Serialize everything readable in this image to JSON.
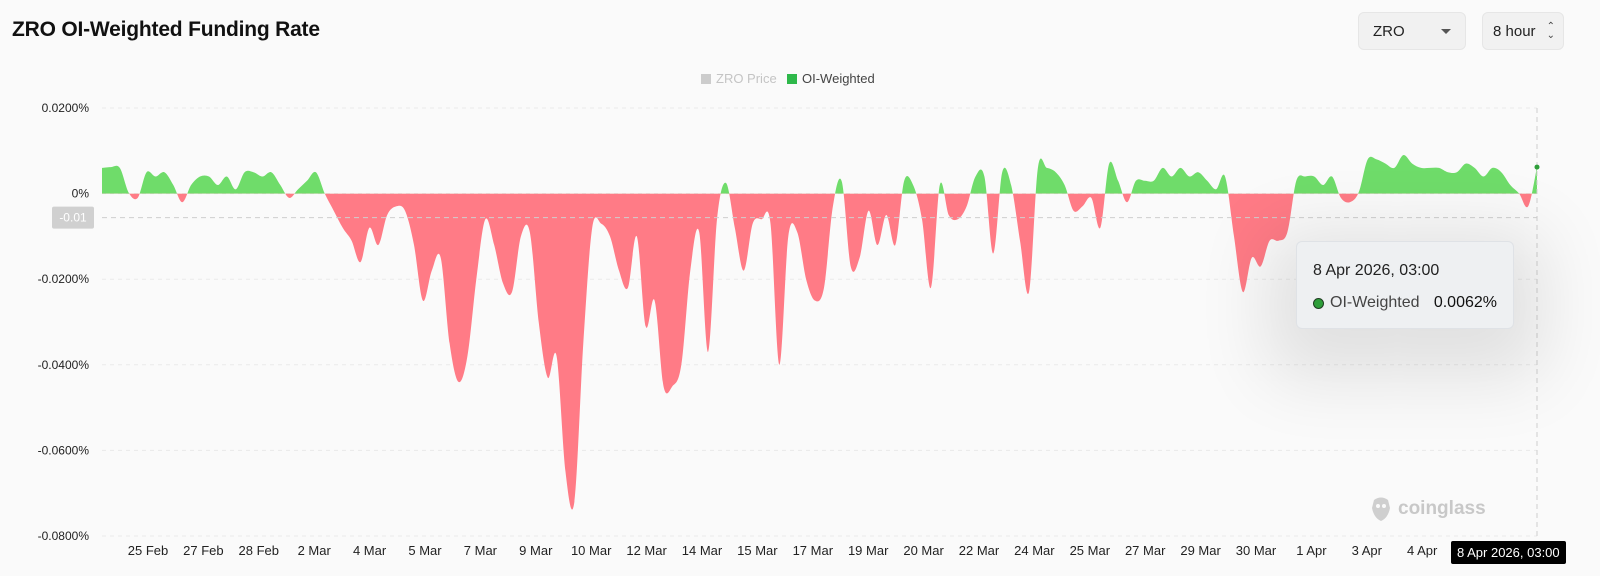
{
  "header": {
    "title": "ZRO OI-Weighted Funding Rate",
    "coin_select": "ZRO",
    "interval_select": "8 hour"
  },
  "tooltip": {
    "date": "8 Apr 2026, 03:00",
    "series": "OI-Weighted",
    "value": "0.0062%"
  },
  "crosshair": {
    "y_label": "-0.01",
    "x_label": "8 Apr 2026, 03:00"
  },
  "watermark": "coinglass",
  "colors": {
    "positive": "#6fdc6a",
    "negative": "#ff7b86",
    "legend_price": "#cccccc",
    "legend_oi": "#2eb84a"
  },
  "chart_data": {
    "type": "area",
    "title": "ZRO OI-Weighted Funding Rate",
    "legend": [
      {
        "name": "ZRO Price",
        "color": "#cccccc",
        "active": false
      },
      {
        "name": "OI-Weighted",
        "color": "#2eb84a",
        "active": true
      }
    ],
    "legend_position": "top-center",
    "y_ticks": [
      "0.0200%",
      "0%",
      "-0.0200%",
      "-0.0400%",
      "-0.0600%",
      "-0.0800%"
    ],
    "y_tick_values": [
      0.02,
      0,
      -0.02,
      -0.04,
      -0.06,
      -0.08
    ],
    "ylim": [
      -0.08,
      0.02
    ],
    "x_ticks": [
      "25 Feb",
      "27 Feb",
      "28 Feb",
      "2 Mar",
      "4 Mar",
      "5 Mar",
      "7 Mar",
      "9 Mar",
      "10 Mar",
      "12 Mar",
      "14 Mar",
      "15 Mar",
      "17 Mar",
      "19 Mar",
      "20 Mar",
      "22 Mar",
      "24 Mar",
      "25 Mar",
      "27 Mar",
      "29 Mar",
      "30 Mar",
      "1 Apr",
      "3 Apr",
      "4 Apr"
    ],
    "grid": true,
    "series": [
      {
        "name": "OI-Weighted",
        "unit": "%",
        "values": [
          0.006,
          0.0062,
          0.006,
          0.0002,
          -0.001,
          0.005,
          0.004,
          0.005,
          0.002,
          -0.002,
          0.002,
          0.004,
          0.004,
          0.002,
          0.004,
          0.001,
          0.005,
          0.005,
          0.004,
          0.005,
          0.002,
          -0.001,
          0.001,
          0.003,
          0.005,
          0,
          -0.004,
          -0.008,
          -0.011,
          -0.016,
          -0.008,
          -0.012,
          -0.005,
          -0.003,
          -0.004,
          -0.012,
          -0.025,
          -0.018,
          -0.015,
          -0.035,
          -0.044,
          -0.038,
          -0.02,
          -0.006,
          -0.012,
          -0.021,
          -0.023,
          -0.01,
          -0.009,
          -0.03,
          -0.043,
          -0.038,
          -0.065,
          -0.072,
          -0.035,
          -0.008,
          -0.007,
          -0.01,
          -0.018,
          -0.022,
          -0.01,
          -0.031,
          -0.025,
          -0.045,
          -0.045,
          -0.04,
          -0.018,
          -0.009,
          -0.037,
          -0.006,
          0.0025,
          -0.008,
          -0.018,
          -0.007,
          -0.006,
          -0.007,
          -0.04,
          -0.01,
          -0.009,
          -0.02,
          -0.025,
          -0.022,
          -0.003,
          0.0028,
          -0.017,
          -0.015,
          -0.004,
          -0.012,
          -0.005,
          -0.012,
          0.003,
          0.002,
          -0.006,
          -0.022,
          0.002,
          -0.005,
          -0.006,
          -0.003,
          0.004,
          0.004,
          -0.014,
          0.005,
          0.002,
          -0.011,
          -0.023,
          0.006,
          0.006,
          0.005,
          0.002,
          -0.004,
          -0.003,
          -0.001,
          -0.008,
          0.007,
          0.003,
          -0.002,
          0.003,
          0.003,
          0.003,
          0.006,
          0.004,
          0.006,
          0.004,
          0.005,
          0.003,
          0.001,
          0.004,
          -0.01,
          -0.023,
          -0.015,
          -0.017,
          -0.011,
          -0.011,
          -0.009,
          0.003,
          0.004,
          0.004,
          0.002,
          0.004,
          -0.001,
          -0.002,
          0.0003,
          0.008,
          0.008,
          0.007,
          0.006,
          0.009,
          0.007,
          0.006,
          0.006,
          0.006,
          0.005,
          0.005,
          0.007,
          0.006,
          0.004,
          0.006,
          0.005,
          0.002,
          0,
          -0.003,
          0.0062
        ]
      }
    ]
  }
}
